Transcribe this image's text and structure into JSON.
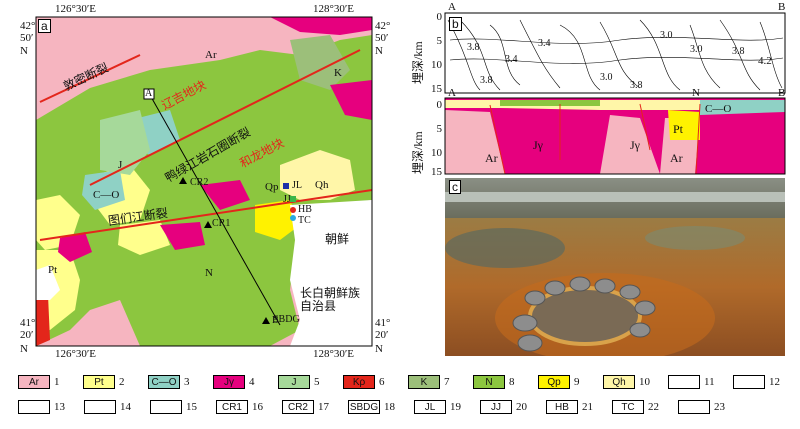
{
  "panel_a": {
    "letter": "a",
    "coords": {
      "top_left": "126°30′E",
      "top_right": "128°30′E",
      "bottom_left": "126°30′E",
      "bottom_right": "128°30′E",
      "left_top": [
        "42°",
        "50′",
        "N"
      ],
      "left_bottom": [
        "41°",
        "20′",
        "N"
      ],
      "right_top": [
        "42°",
        "50′",
        "N"
      ],
      "right_bottom": [
        "41°",
        "20′",
        "N"
      ]
    },
    "labels": {
      "dunmi_fault": "敦密断裂",
      "yaluzhou_block": "辽吉地块",
      "yalujiang_fault": "鸭绿江岩石圈断裂",
      "helong_block": "和龙地块",
      "tumen_fault": "图们江断裂",
      "chaoxian": "朝鲜",
      "county": "长白朝鲜族自治县",
      "Ar": "Ar",
      "J": "J",
      "K": "K",
      "C_O": "C—O",
      "Qh": "Qh",
      "Qp": "Qp",
      "Pt": "Pt",
      "N": "N",
      "A": "A",
      "B": "B",
      "CR1": "CR1",
      "CR2": "CR2",
      "JL": "JL",
      "JJ": "JJ",
      "HB": "HB",
      "TC": "TC",
      "SBDG": "SBDG"
    }
  },
  "panel_b": {
    "letter": "b",
    "ylabel": "埋深/km",
    "ticks": [
      "0",
      "5",
      "10",
      "15"
    ],
    "A": "A",
    "B": "B",
    "contour_labels": [
      "3.8",
      "3.4",
      "3.0",
      "3.8",
      "3.0",
      "3.8",
      "3.4",
      "3.0",
      "3.8",
      "4.2"
    ]
  },
  "panel_section": {
    "ylabel": "埋深/km",
    "ticks": [
      "0",
      "5",
      "10",
      "15"
    ],
    "A": "A",
    "B": "B",
    "N": "N",
    "labels": [
      "Ar",
      "Jγ",
      "Jγ",
      "Pt",
      "Ar",
      "C—O"
    ]
  },
  "panel_c": {
    "letter": "c"
  },
  "legend": [
    {
      "code": "Ar",
      "num": "1",
      "color": "#f6b5c0"
    },
    {
      "code": "Pt",
      "num": "2",
      "color": "#ffff8c"
    },
    {
      "code": "C—O",
      "num": "3",
      "color": "#8fd1c5"
    },
    {
      "code": "Jγ",
      "num": "4",
      "color": "#e6007e"
    },
    {
      "code": "J",
      "num": "5",
      "color": "#a6d99a"
    },
    {
      "code": "Kρ",
      "num": "6",
      "color": "#e3261b"
    },
    {
      "code": "K",
      "num": "7",
      "color": "#9cbf7a"
    },
    {
      "code": "N",
      "num": "8",
      "color": "#8cc63f"
    },
    {
      "code": "Qp",
      "num": "9",
      "color": "#fff200"
    },
    {
      "code": "Qh",
      "num": "10",
      "color": "#fff6a8"
    },
    {
      "code": "",
      "num": "11",
      "color": ""
    },
    {
      "code": "",
      "num": "12",
      "color": ""
    },
    {
      "code": "",
      "num": "13",
      "color": ""
    },
    {
      "code": "",
      "num": "14",
      "color": ""
    },
    {
      "code": "",
      "num": "15",
      "color": ""
    },
    {
      "code": "CR1",
      "num": "16",
      "color": ""
    },
    {
      "code": "CR2",
      "num": "17",
      "color": ""
    },
    {
      "code": "SBDG",
      "num": "18",
      "color": ""
    },
    {
      "code": "JL",
      "num": "19",
      "color": "#1f2fa8"
    },
    {
      "code": "JJ",
      "num": "20",
      "color": "#3bb54a"
    },
    {
      "code": "HB",
      "num": "21",
      "color": "#e3261b"
    },
    {
      "code": "TC",
      "num": "22",
      "color": "#29abe2"
    },
    {
      "code": "",
      "num": "23",
      "color": ""
    }
  ]
}
